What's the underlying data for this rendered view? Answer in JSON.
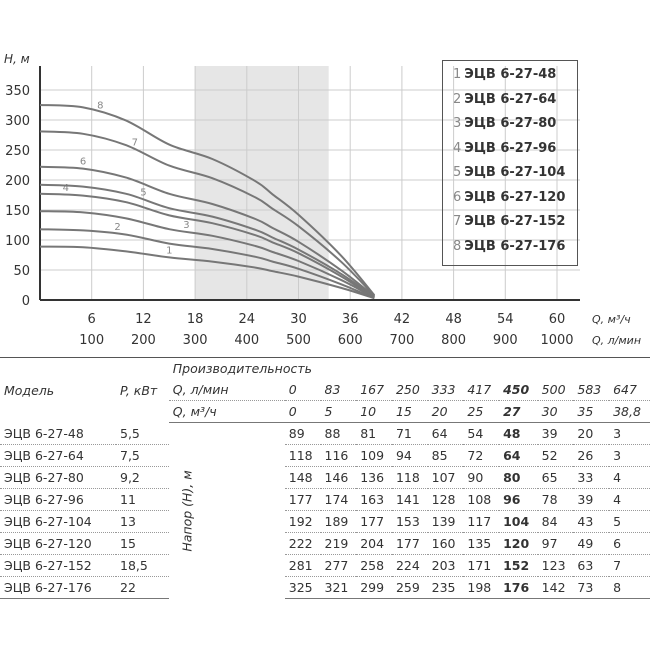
{
  "chart_data": {
    "type": "line",
    "ylabel": "H, м",
    "xlabel": "Q, м³/ч",
    "xlabel2": "Q, л/мин",
    "ylim": [
      0,
      350
    ],
    "xlim": [
      0,
      62
    ],
    "yticks": [
      "0",
      "50",
      "100",
      "150",
      "200",
      "250",
      "300",
      "350"
    ],
    "xticks": [
      "6",
      "12",
      "18",
      "24",
      "30",
      "36",
      "42",
      "48",
      "54",
      "60"
    ],
    "xticks2": [
      "100",
      "200",
      "300",
      "400",
      "500",
      "600",
      "700",
      "800",
      "900",
      "1000"
    ],
    "grid": true,
    "shaded_range": [
      18,
      33.5
    ],
    "legend_position": "top-right",
    "x": [
      0,
      5,
      10,
      15,
      20,
      25,
      27,
      30,
      35,
      38.8
    ],
    "series": [
      {
        "name": "ЭЦВ 6-27-48",
        "label": "1",
        "values": [
          89,
          88,
          81,
          71,
          64,
          54,
          48,
          39,
          20,
          3
        ]
      },
      {
        "name": "ЭЦВ 6-27-64",
        "label": "2",
        "values": [
          118,
          116,
          109,
          94,
          85,
          72,
          64,
          52,
          26,
          3
        ]
      },
      {
        "name": "ЭЦВ 6-27-80",
        "label": "3",
        "values": [
          148,
          146,
          136,
          118,
          107,
          90,
          80,
          65,
          33,
          4
        ]
      },
      {
        "name": "ЭЦВ 6-27-96",
        "label": "4",
        "values": [
          177,
          174,
          163,
          141,
          128,
          108,
          96,
          78,
          39,
          4
        ]
      },
      {
        "name": "ЭЦВ 6-27-104",
        "label": "5",
        "values": [
          192,
          189,
          177,
          153,
          139,
          117,
          104,
          84,
          43,
          5
        ]
      },
      {
        "name": "ЭЦВ 6-27-120",
        "label": "6",
        "values": [
          222,
          219,
          204,
          177,
          160,
          135,
          120,
          97,
          49,
          6
        ]
      },
      {
        "name": "ЭЦВ 6-27-152",
        "label": "7",
        "values": [
          281,
          277,
          258,
          224,
          203,
          171,
          152,
          123,
          63,
          7
        ]
      },
      {
        "name": "ЭЦВ 6-27-176",
        "label": "8",
        "values": [
          325,
          321,
          299,
          259,
          235,
          198,
          176,
          142,
          73,
          8
        ]
      }
    ],
    "colors": {
      "line": "#777777",
      "shade": "#e6e6e6",
      "grid": "#cccccc"
    }
  },
  "table": {
    "model_h": "Модель",
    "power_h": "P, кВт",
    "perf_h": "Производительность",
    "q_lmin_h": "Q, л/мин",
    "q_m3h_h": "Q, м³/ч",
    "head_h": "Напор (Н), м",
    "q_lmin": [
      "0",
      "83",
      "167",
      "250",
      "333",
      "417",
      "450",
      "500",
      "583",
      "647"
    ],
    "q_m3h": [
      "0",
      "5",
      "10",
      "15",
      "20",
      "25",
      "27",
      "30",
      "35",
      "38,8"
    ],
    "bold_col": 6,
    "rows": [
      {
        "model": "ЭЦВ 6-27-48",
        "p": "5,5",
        "h": [
          "89",
          "88",
          "81",
          "71",
          "64",
          "54",
          "48",
          "39",
          "20",
          "3"
        ]
      },
      {
        "model": "ЭЦВ 6-27-64",
        "p": "7,5",
        "h": [
          "118",
          "116",
          "109",
          "94",
          "85",
          "72",
          "64",
          "52",
          "26",
          "3"
        ]
      },
      {
        "model": "ЭЦВ 6-27-80",
        "p": "9,2",
        "h": [
          "148",
          "146",
          "136",
          "118",
          "107",
          "90",
          "80",
          "65",
          "33",
          "4"
        ]
      },
      {
        "model": "ЭЦВ 6-27-96",
        "p": "11",
        "h": [
          "177",
          "174",
          "163",
          "141",
          "128",
          "108",
          "96",
          "78",
          "39",
          "4"
        ]
      },
      {
        "model": "ЭЦВ 6-27-104",
        "p": "13",
        "h": [
          "192",
          "189",
          "177",
          "153",
          "139",
          "117",
          "104",
          "84",
          "43",
          "5"
        ]
      },
      {
        "model": "ЭЦВ 6-27-120",
        "p": "15",
        "h": [
          "222",
          "219",
          "204",
          "177",
          "160",
          "135",
          "120",
          "97",
          "49",
          "6"
        ]
      },
      {
        "model": "ЭЦВ 6-27-152",
        "p": "18,5",
        "h": [
          "281",
          "277",
          "258",
          "224",
          "203",
          "171",
          "152",
          "123",
          "63",
          "7"
        ]
      },
      {
        "model": "ЭЦВ 6-27-176",
        "p": "22",
        "h": [
          "325",
          "321",
          "299",
          "259",
          "235",
          "198",
          "176",
          "142",
          "73",
          "8"
        ]
      }
    ]
  }
}
